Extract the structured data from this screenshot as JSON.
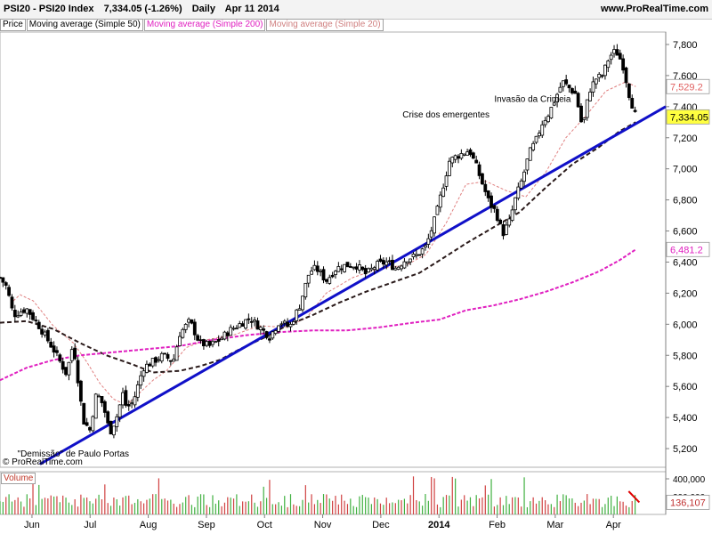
{
  "header": {
    "symbol": "PSI20 - PSI20 Index",
    "quote": "7,334.05 (-1.26%)",
    "period": "Daily",
    "date": "Apr 11 2014",
    "site": "www.ProRealTime.com"
  },
  "legend": [
    {
      "label": "Price",
      "color": "#000000"
    },
    {
      "label": "Moving average (Simple 50)",
      "color": "#000000"
    },
    {
      "label": "Moving average (Simple 200)",
      "color": "#e020c0"
    },
    {
      "label": "Moving average (Simple 20)",
      "color": "#d08080"
    }
  ],
  "copyright": "© ProRealTime.com",
  "volume_label": "Volume",
  "chart_data": {
    "type": "line",
    "x_ticks": [
      "Jun",
      "Jul",
      "Aug",
      "Sep",
      "Oct",
      "Nov",
      "Dec",
      "2014",
      "Feb",
      "Mar",
      "Apr"
    ],
    "y_ticks": [
      5200,
      5400,
      5600,
      5800,
      6000,
      6200,
      6400,
      6600,
      6800,
      7000,
      7200,
      7400,
      7600,
      7800
    ],
    "ylim": [
      5080,
      7880
    ],
    "price_tags": [
      {
        "text": "7,529.2",
        "value": 7529.2,
        "color": "#e06060",
        "highlight": false
      },
      {
        "text": "7,334.05",
        "value": 7334.05,
        "color": "#000000",
        "highlight": true
      },
      {
        "text": "6,481.2",
        "value": 6481.2,
        "color": "#e020c0",
        "highlight": false
      }
    ],
    "annotations": [
      {
        "text": "\"Demissão\" de Paulo Portas",
        "t": 0.11,
        "value": 5150
      },
      {
        "text": "Crise dos emergentes",
        "t": 0.67,
        "value": 7330
      },
      {
        "text": "Invasão da Crimeia",
        "t": 0.8,
        "value": 7430
      }
    ],
    "price": [
      {
        "t": 0.0,
        "v": 6300
      },
      {
        "t": 0.01,
        "v": 6240
      },
      {
        "t": 0.02,
        "v": 6060
      },
      {
        "t": 0.04,
        "v": 6100
      },
      {
        "t": 0.06,
        "v": 5980
      },
      {
        "t": 0.08,
        "v": 5840
      },
      {
        "t": 0.1,
        "v": 5680
      },
      {
        "t": 0.11,
        "v": 5880
      },
      {
        "t": 0.125,
        "v": 5380
      },
      {
        "t": 0.135,
        "v": 5320
      },
      {
        "t": 0.145,
        "v": 5560
      },
      {
        "t": 0.155,
        "v": 5480
      },
      {
        "t": 0.165,
        "v": 5300
      },
      {
        "t": 0.175,
        "v": 5400
      },
      {
        "t": 0.185,
        "v": 5560
      },
      {
        "t": 0.19,
        "v": 5460
      },
      {
        "t": 0.2,
        "v": 5500
      },
      {
        "t": 0.215,
        "v": 5720
      },
      {
        "t": 0.23,
        "v": 5760
      },
      {
        "t": 0.245,
        "v": 5800
      },
      {
        "t": 0.26,
        "v": 5760
      },
      {
        "t": 0.27,
        "v": 5940
      },
      {
        "t": 0.285,
        "v": 6020
      },
      {
        "t": 0.3,
        "v": 5880
      },
      {
        "t": 0.315,
        "v": 5860
      },
      {
        "t": 0.33,
        "v": 5900
      },
      {
        "t": 0.345,
        "v": 5960
      },
      {
        "t": 0.36,
        "v": 6000
      },
      {
        "t": 0.375,
        "v": 6040
      },
      {
        "t": 0.39,
        "v": 5980
      },
      {
        "t": 0.405,
        "v": 5920
      },
      {
        "t": 0.42,
        "v": 6020
      },
      {
        "t": 0.435,
        "v": 5980
      },
      {
        "t": 0.45,
        "v": 6120
      },
      {
        "t": 0.465,
        "v": 6340
      },
      {
        "t": 0.475,
        "v": 6360
      },
      {
        "t": 0.49,
        "v": 6280
      },
      {
        "t": 0.505,
        "v": 6360
      },
      {
        "t": 0.52,
        "v": 6380
      },
      {
        "t": 0.535,
        "v": 6380
      },
      {
        "t": 0.55,
        "v": 6320
      },
      {
        "t": 0.565,
        "v": 6380
      },
      {
        "t": 0.58,
        "v": 6400
      },
      {
        "t": 0.595,
        "v": 6360
      },
      {
        "t": 0.61,
        "v": 6420
      },
      {
        "t": 0.625,
        "v": 6440
      },
      {
        "t": 0.64,
        "v": 6500
      },
      {
        "t": 0.655,
        "v": 6700
      },
      {
        "t": 0.665,
        "v": 6880
      },
      {
        "t": 0.675,
        "v": 7050
      },
      {
        "t": 0.685,
        "v": 7080
      },
      {
        "t": 0.695,
        "v": 7100
      },
      {
        "t": 0.705,
        "v": 7120
      },
      {
        "t": 0.715,
        "v": 7020
      },
      {
        "t": 0.725,
        "v": 6900
      },
      {
        "t": 0.735,
        "v": 6780
      },
      {
        "t": 0.745,
        "v": 6720
      },
      {
        "t": 0.755,
        "v": 6580
      },
      {
        "t": 0.765,
        "v": 6660
      },
      {
        "t": 0.775,
        "v": 6820
      },
      {
        "t": 0.785,
        "v": 6940
      },
      {
        "t": 0.795,
        "v": 7100
      },
      {
        "t": 0.805,
        "v": 7180
      },
      {
        "t": 0.815,
        "v": 7300
      },
      {
        "t": 0.825,
        "v": 7360
      },
      {
        "t": 0.835,
        "v": 7460
      },
      {
        "t": 0.845,
        "v": 7560
      },
      {
        "t": 0.855,
        "v": 7520
      },
      {
        "t": 0.865,
        "v": 7480
      },
      {
        "t": 0.875,
        "v": 7260
      },
      {
        "t": 0.885,
        "v": 7500
      },
      {
        "t": 0.895,
        "v": 7580
      },
      {
        "t": 0.905,
        "v": 7600
      },
      {
        "t": 0.915,
        "v": 7720
      },
      {
        "t": 0.925,
        "v": 7760
      },
      {
        "t": 0.935,
        "v": 7680
      },
      {
        "t": 0.945,
        "v": 7480
      },
      {
        "t": 0.955,
        "v": 7334
      }
    ],
    "series": [
      {
        "name": "Moving average (Simple 20)",
        "color": "#e08080",
        "dash": "3,2",
        "width": 1,
        "points": [
          {
            "t": 0.02,
            "v": 6150
          },
          {
            "t": 0.03,
            "v": 6190
          },
          {
            "t": 0.05,
            "v": 6150
          },
          {
            "t": 0.08,
            "v": 5990
          },
          {
            "t": 0.11,
            "v": 5880
          },
          {
            "t": 0.13,
            "v": 5760
          },
          {
            "t": 0.15,
            "v": 5620
          },
          {
            "t": 0.17,
            "v": 5520
          },
          {
            "t": 0.19,
            "v": 5480
          },
          {
            "t": 0.21,
            "v": 5560
          },
          {
            "t": 0.23,
            "v": 5640
          },
          {
            "t": 0.25,
            "v": 5700
          },
          {
            "t": 0.28,
            "v": 5850
          },
          {
            "t": 0.31,
            "v": 5900
          },
          {
            "t": 0.35,
            "v": 5930
          },
          {
            "t": 0.39,
            "v": 5990
          },
          {
            "t": 0.43,
            "v": 5980
          },
          {
            "t": 0.46,
            "v": 6040
          },
          {
            "t": 0.49,
            "v": 6200
          },
          {
            "t": 0.53,
            "v": 6300
          },
          {
            "t": 0.57,
            "v": 6360
          },
          {
            "t": 0.61,
            "v": 6380
          },
          {
            "t": 0.64,
            "v": 6450
          },
          {
            "t": 0.67,
            "v": 6650
          },
          {
            "t": 0.7,
            "v": 6900
          },
          {
            "t": 0.73,
            "v": 6920
          },
          {
            "t": 0.76,
            "v": 6860
          },
          {
            "t": 0.79,
            "v": 6820
          },
          {
            "t": 0.82,
            "v": 6980
          },
          {
            "t": 0.85,
            "v": 7200
          },
          {
            "t": 0.88,
            "v": 7340
          },
          {
            "t": 0.91,
            "v": 7500
          },
          {
            "t": 0.94,
            "v": 7560
          },
          {
            "t": 0.955,
            "v": 7529
          }
        ]
      },
      {
        "name": "Moving average (Simple 50)",
        "color": "#2a1a1a",
        "dash": "5,3",
        "width": 2,
        "points": [
          {
            "t": 0.0,
            "v": 6010
          },
          {
            "t": 0.04,
            "v": 6020
          },
          {
            "t": 0.08,
            "v": 5970
          },
          {
            "t": 0.12,
            "v": 5880
          },
          {
            "t": 0.16,
            "v": 5800
          },
          {
            "t": 0.2,
            "v": 5740
          },
          {
            "t": 0.23,
            "v": 5690
          },
          {
            "t": 0.27,
            "v": 5700
          },
          {
            "t": 0.3,
            "v": 5730
          },
          {
            "t": 0.33,
            "v": 5770
          },
          {
            "t": 0.36,
            "v": 5840
          },
          {
            "t": 0.4,
            "v": 5920
          },
          {
            "t": 0.43,
            "v": 5990
          },
          {
            "t": 0.47,
            "v": 6060
          },
          {
            "t": 0.51,
            "v": 6140
          },
          {
            "t": 0.55,
            "v": 6210
          },
          {
            "t": 0.59,
            "v": 6270
          },
          {
            "t": 0.63,
            "v": 6330
          },
          {
            "t": 0.66,
            "v": 6410
          },
          {
            "t": 0.7,
            "v": 6520
          },
          {
            "t": 0.74,
            "v": 6620
          },
          {
            "t": 0.78,
            "v": 6720
          },
          {
            "t": 0.82,
            "v": 6880
          },
          {
            "t": 0.86,
            "v": 7030
          },
          {
            "t": 0.9,
            "v": 7140
          },
          {
            "t": 0.93,
            "v": 7240
          },
          {
            "t": 0.955,
            "v": 7300
          }
        ]
      },
      {
        "name": "Moving average (Simple 200)",
        "color": "#e020c0",
        "dash": "4,2",
        "width": 2,
        "points": [
          {
            "t": 0.0,
            "v": 5640
          },
          {
            "t": 0.04,
            "v": 5720
          },
          {
            "t": 0.08,
            "v": 5770
          },
          {
            "t": 0.12,
            "v": 5800
          },
          {
            "t": 0.17,
            "v": 5820
          },
          {
            "t": 0.22,
            "v": 5840
          },
          {
            "t": 0.27,
            "v": 5860
          },
          {
            "t": 0.32,
            "v": 5900
          },
          {
            "t": 0.37,
            "v": 5930
          },
          {
            "t": 0.42,
            "v": 5950
          },
          {
            "t": 0.47,
            "v": 5960
          },
          {
            "t": 0.52,
            "v": 5960
          },
          {
            "t": 0.57,
            "v": 5980
          },
          {
            "t": 0.62,
            "v": 6010
          },
          {
            "t": 0.66,
            "v": 6030
          },
          {
            "t": 0.7,
            "v": 6090
          },
          {
            "t": 0.74,
            "v": 6120
          },
          {
            "t": 0.78,
            "v": 6160
          },
          {
            "t": 0.82,
            "v": 6210
          },
          {
            "t": 0.86,
            "v": 6270
          },
          {
            "t": 0.9,
            "v": 6340
          },
          {
            "t": 0.93,
            "v": 6410
          },
          {
            "t": 0.955,
            "v": 6481
          }
        ]
      },
      {
        "name": "",
        "color": "#1010c8",
        "dash": "",
        "width": 3,
        "points": [
          {
            "t": 0.06,
            "v": 5100
          },
          {
            "t": 1.0,
            "v": 7400
          }
        ]
      }
    ],
    "volume": {
      "y_ticks": [
        {
          "text": "400,000",
          "value": 400000
        },
        {
          "text": "200,000",
          "value": 200000
        }
      ],
      "ylim": [
        0,
        480000
      ],
      "last_tag": "136,107",
      "last_value": 136107
    }
  }
}
